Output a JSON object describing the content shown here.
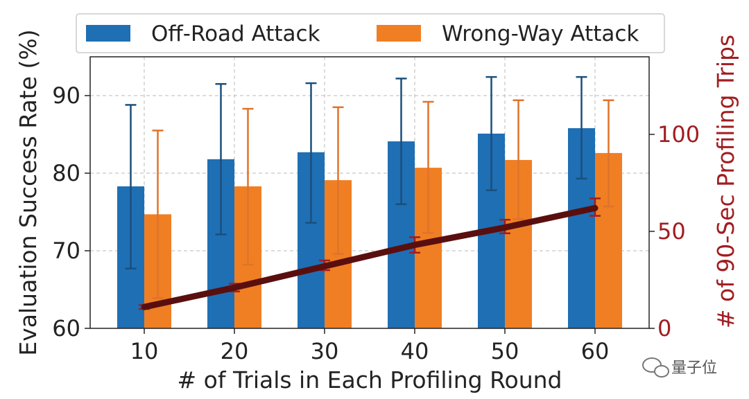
{
  "chart_data": {
    "type": "bar",
    "categories": [
      "10",
      "20",
      "30",
      "40",
      "50",
      "60"
    ],
    "xlabel": "# of Trials in Each Profiling Round",
    "ylabel": "Evaluation Success Rate (%)",
    "ylim": [
      60,
      95
    ],
    "yticks": [
      "60",
      "70",
      "80",
      "90"
    ],
    "y2label": "# of 90-Sec Profiling Trips",
    "y2lim": [
      0,
      140
    ],
    "y2ticks": [
      "0",
      "50",
      "100"
    ],
    "grid": true,
    "legend_position": "top",
    "series": [
      {
        "name": "Off-Road Attack",
        "color": "#1f6fb4",
        "values": [
          78.3,
          81.8,
          82.7,
          84.1,
          85.1,
          85.8
        ],
        "err_low": [
          67.7,
          72.1,
          73.6,
          76.0,
          77.8,
          79.3
        ],
        "err_high": [
          88.8,
          91.5,
          91.6,
          92.2,
          92.4,
          92.4
        ]
      },
      {
        "name": "Wrong-Way Attack",
        "color": "#f07f24",
        "values": [
          74.7,
          78.3,
          79.1,
          80.7,
          81.7,
          82.6
        ],
        "err_low": [
          63.9,
          68.2,
          69.6,
          72.3,
          74.1,
          75.7
        ],
        "err_high": [
          85.5,
          88.3,
          88.5,
          89.2,
          89.4,
          89.4
        ]
      }
    ],
    "line_series": {
      "name": "# of 90-Sec Profiling Trips",
      "axis": "right",
      "color": "#5a0f0f",
      "err_color": "#a11d21",
      "values": [
        11,
        21,
        32,
        43,
        52,
        62
      ],
      "err_low": [
        10,
        19,
        30,
        39,
        49,
        58
      ],
      "err_high": [
        12,
        23,
        35,
        47,
        56,
        67
      ]
    }
  },
  "watermark": {
    "text": "量子位",
    "icon": "wechat-icon"
  }
}
